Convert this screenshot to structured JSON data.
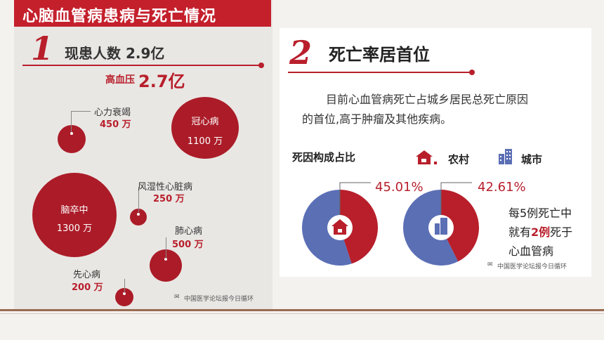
{
  "left": {
    "title": "心脑血管病患病与死亡情况",
    "section_number": "1",
    "patients": "现患人数 2.9亿",
    "hypertension_label": "高血压",
    "hypertension_value": "2.7亿",
    "diseases": [
      {
        "name": "心力衰竭",
        "value": "450 万"
      },
      {
        "name": "冠心病",
        "value": "1100 万"
      },
      {
        "name": "风湿性心脏病",
        "value": "250 万"
      },
      {
        "name": "脑卒中",
        "value": "1300 万"
      },
      {
        "name": "肺心病",
        "value": "500 万"
      },
      {
        "name": "先心病",
        "value": "200 万"
      }
    ],
    "watermark": "中国医学论坛报今日循环"
  },
  "right": {
    "section_number": "2",
    "title": "死亡率居首位",
    "description_line1": "目前心血管病死亡占城乡居民总死亡原因",
    "description_line2": "的首位,高于肿瘤及其他疾病。",
    "chart_title": "死因构成占比",
    "legend": [
      {
        "label": "农村",
        "icon": "house-icon"
      },
      {
        "label": "城市",
        "icon": "buildings-icon"
      }
    ],
    "fact_line1": "每5例死亡中",
    "fact_pre": "就有",
    "fact_highlight": "2例",
    "fact_post": "死于",
    "fact_line3": "心血管病",
    "watermark": "中国医学论坛报今日循环"
  },
  "colors": {
    "red": "#b81f2b",
    "blue": "#5b6fb5"
  },
  "chart_data": {
    "type": "pie",
    "title": "死因构成占比",
    "charts": [
      {
        "name": "农村",
        "values": [
          45.01,
          54.99
        ],
        "labels": [
          "45.01%",
          ""
        ]
      },
      {
        "name": "城市",
        "values": [
          42.61,
          57.39
        ],
        "labels": [
          "42.61%",
          ""
        ]
      }
    ]
  }
}
